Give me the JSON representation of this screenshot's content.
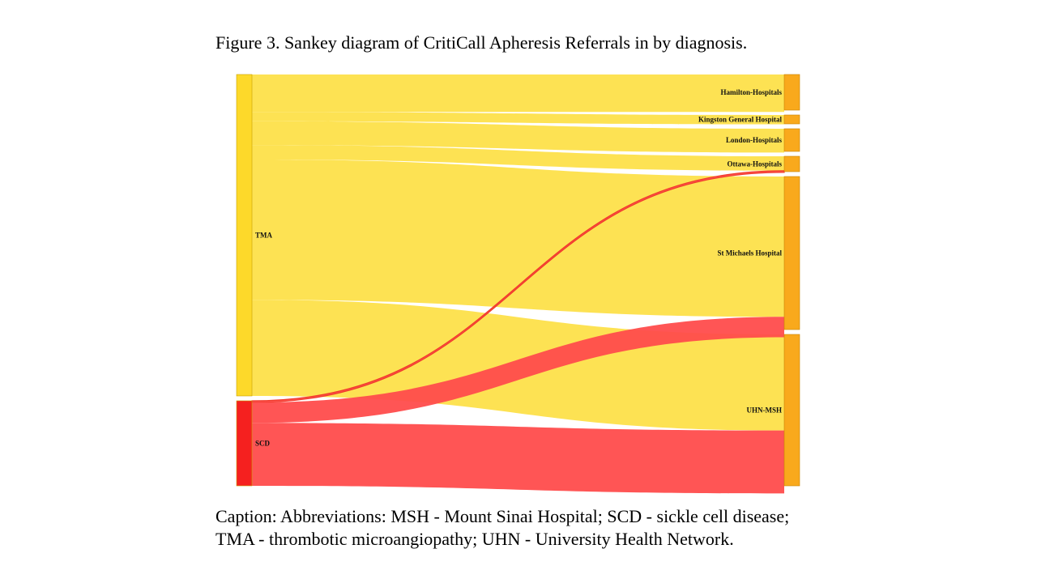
{
  "title": "Figure 3. Sankey diagram of CritiCall Apheresis Referrals in by diagnosis.",
  "caption": {
    "line1": "Caption: Abbreviations: MSH - Mount Sinai Hospital; SCD - sickle cell disease;",
    "line2": "TMA - thrombotic microangiopathy; UHN - University Health Network."
  },
  "colors": {
    "tma_node": "#fdd92a",
    "tma_link": "#fde04a",
    "scd_node": "#f5201f",
    "scd_link": "#ff4c4c",
    "target_node": "#f9a91c"
  },
  "chart_data": {
    "type": "sankey",
    "sources": [
      {
        "id": "TMA",
        "label": "TMA",
        "color": "#fdd92a"
      },
      {
        "id": "SCD",
        "label": "SCD",
        "color": "#f5201f"
      }
    ],
    "targets": [
      {
        "id": "hamilton",
        "label": "Hamilton-Hospitals"
      },
      {
        "id": "kingston",
        "label": "Kingston General Hospital"
      },
      {
        "id": "london",
        "label": "London-Hospitals"
      },
      {
        "id": "ottawa",
        "label": "Ottawa-Hospitals"
      },
      {
        "id": "stmichaels",
        "label": "St Michaels Hospital"
      },
      {
        "id": "uhnmsh",
        "label": "UHN-MSH"
      }
    ],
    "links": [
      {
        "source": "TMA",
        "target": "hamilton",
        "value": 44
      },
      {
        "source": "TMA",
        "target": "kingston",
        "value": 11
      },
      {
        "source": "TMA",
        "target": "london",
        "value": 28
      },
      {
        "source": "TMA",
        "target": "ottawa",
        "value": 17
      },
      {
        "source": "TMA",
        "target": "stmichaels",
        "value": 165
      },
      {
        "source": "TMA",
        "target": "uhnmsh",
        "value": 113
      },
      {
        "source": "SCD",
        "target": "ottawa",
        "value": 2
      },
      {
        "source": "SCD",
        "target": "stmichaels",
        "value": 24
      },
      {
        "source": "SCD",
        "target": "uhnmsh",
        "value": 74
      }
    ]
  }
}
